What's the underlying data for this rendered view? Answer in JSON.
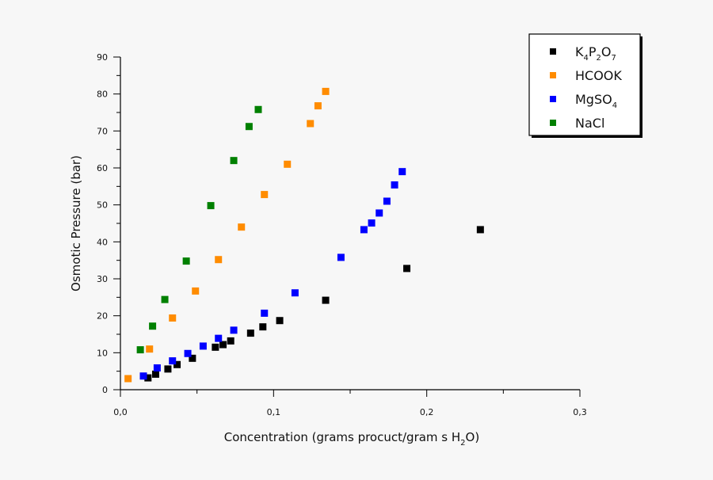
{
  "chart_data": {
    "type": "scatter",
    "title": "",
    "xlabel": {
      "text": "Concentration (grams procuct/gram s H",
      "sub": "2",
      "tail": "O)"
    },
    "ylabel": "Osmotic Pressure (bar)",
    "xlim": [
      0,
      0.3
    ],
    "ylim": [
      0,
      90
    ],
    "xticks": [
      {
        "v": 0,
        "label": "0,0"
      },
      {
        "v": 0.1,
        "label": "0,1"
      },
      {
        "v": 0.2,
        "label": "0,2"
      },
      {
        "v": 0.3,
        "label": "0,3"
      }
    ],
    "yticks": [
      {
        "v": 0,
        "label": "0"
      },
      {
        "v": 10,
        "label": "10"
      },
      {
        "v": 20,
        "label": "20"
      },
      {
        "v": 30,
        "label": "30"
      },
      {
        "v": 40,
        "label": "40"
      },
      {
        "v": 50,
        "label": "50"
      },
      {
        "v": 60,
        "label": "60"
      },
      {
        "v": 70,
        "label": "70"
      },
      {
        "v": 80,
        "label": "80"
      },
      {
        "v": 90,
        "label": "90"
      }
    ],
    "legend_position": "top-right",
    "series": [
      {
        "name": "K4P2O7",
        "label_parts": [
          [
            "K",
            ""
          ],
          [
            "4",
            "sub"
          ],
          [
            "P",
            ""
          ],
          [
            "2",
            "sub"
          ],
          [
            "O",
            ""
          ],
          [
            "7",
            "sub"
          ]
        ],
        "color": "#000000",
        "points": [
          [
            0.018,
            3.2
          ],
          [
            0.023,
            4.2
          ],
          [
            0.031,
            5.6
          ],
          [
            0.037,
            6.8
          ],
          [
            0.047,
            8.5
          ],
          [
            0.062,
            11.5
          ],
          [
            0.067,
            12.2
          ],
          [
            0.072,
            13.2
          ],
          [
            0.085,
            15.3
          ],
          [
            0.093,
            17.0
          ],
          [
            0.104,
            18.7
          ],
          [
            0.134,
            24.2
          ],
          [
            0.187,
            32.8
          ],
          [
            0.235,
            43.3
          ]
        ]
      },
      {
        "name": "HCOOK",
        "label_parts": [
          [
            "HCOOK",
            ""
          ]
        ],
        "color": "#ff8c00",
        "points": [
          [
            0.005,
            3.0
          ],
          [
            0.019,
            11.0
          ],
          [
            0.034,
            19.4
          ],
          [
            0.049,
            26.7
          ],
          [
            0.064,
            35.2
          ],
          [
            0.079,
            44.0
          ],
          [
            0.094,
            52.8
          ],
          [
            0.109,
            61.0
          ],
          [
            0.124,
            72.0
          ],
          [
            0.129,
            76.8
          ],
          [
            0.134,
            80.7
          ]
        ]
      },
      {
        "name": "MgSO4",
        "label_parts": [
          [
            "MgSO",
            ""
          ],
          [
            "4",
            "sub"
          ]
        ],
        "color": "#0000ff",
        "points": [
          [
            0.015,
            3.7
          ],
          [
            0.024,
            5.9
          ],
          [
            0.034,
            7.8
          ],
          [
            0.044,
            9.8
          ],
          [
            0.054,
            11.8
          ],
          [
            0.064,
            13.9
          ],
          [
            0.074,
            16.1
          ],
          [
            0.094,
            20.7
          ],
          [
            0.114,
            26.2
          ],
          [
            0.144,
            35.8
          ],
          [
            0.159,
            43.3
          ],
          [
            0.164,
            45.1
          ],
          [
            0.169,
            47.8
          ],
          [
            0.174,
            51.0
          ],
          [
            0.179,
            55.4
          ],
          [
            0.184,
            59.0
          ]
        ]
      },
      {
        "name": "NaCl",
        "label_parts": [
          [
            "NaCl",
            ""
          ]
        ],
        "color": "#008000",
        "points": [
          [
            0.013,
            10.8
          ],
          [
            0.021,
            17.2
          ],
          [
            0.029,
            24.4
          ],
          [
            0.043,
            34.8
          ],
          [
            0.059,
            49.8
          ],
          [
            0.074,
            62.0
          ],
          [
            0.084,
            71.2
          ],
          [
            0.09,
            75.8
          ]
        ]
      }
    ]
  }
}
